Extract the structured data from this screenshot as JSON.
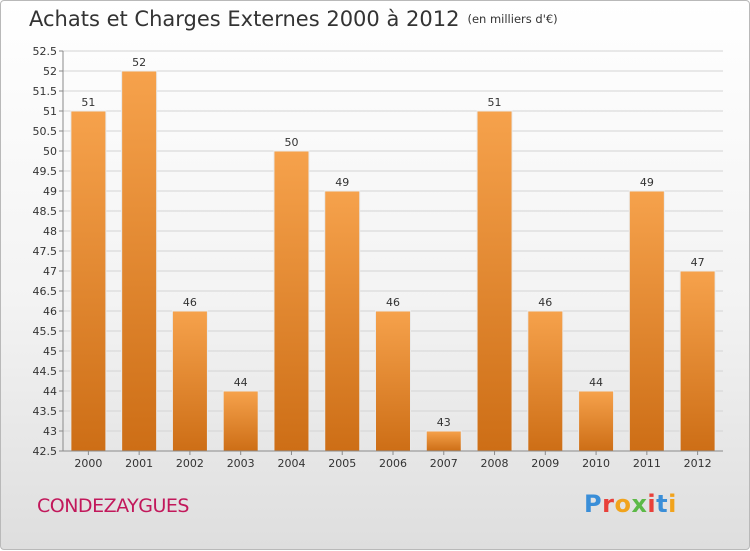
{
  "header": {
    "title": "Achats et Charges Externes 2000 à 2012",
    "unit": "(en milliers d'€)"
  },
  "footer": {
    "commune": "CONDEZAYGUES"
  },
  "logo": {
    "text": "Proxiti",
    "colors": [
      "#3a8ed8",
      "#e8403a",
      "#f1a31c",
      "#5cb947",
      "#e8403a",
      "#3a8ed8",
      "#f1a31c"
    ]
  },
  "colors": {
    "bar_light": "#f6a24c",
    "bar_dark": "#cd6e16",
    "grid": "#d4d4d4",
    "axis": "#8a8a8a",
    "text": "#333333"
  },
  "chart_data": {
    "type": "bar",
    "categories": [
      "2000",
      "2001",
      "2002",
      "2003",
      "2004",
      "2005",
      "2006",
      "2007",
      "2008",
      "2009",
      "2010",
      "2011",
      "2012"
    ],
    "values": [
      51,
      52,
      46,
      44,
      50,
      49,
      46,
      43,
      51,
      46,
      44,
      49,
      47
    ],
    "ylim": [
      42.5,
      52.5
    ],
    "yticks": [
      "42.5",
      "43",
      "43.5",
      "44",
      "44.5",
      "45",
      "45.5",
      "46",
      "46.5",
      "47",
      "47.5",
      "48",
      "48.5",
      "49",
      "49.5",
      "50",
      "50.5",
      "51",
      "51.5",
      "52",
      "52.5"
    ],
    "grid": true,
    "data_labels": true
  }
}
